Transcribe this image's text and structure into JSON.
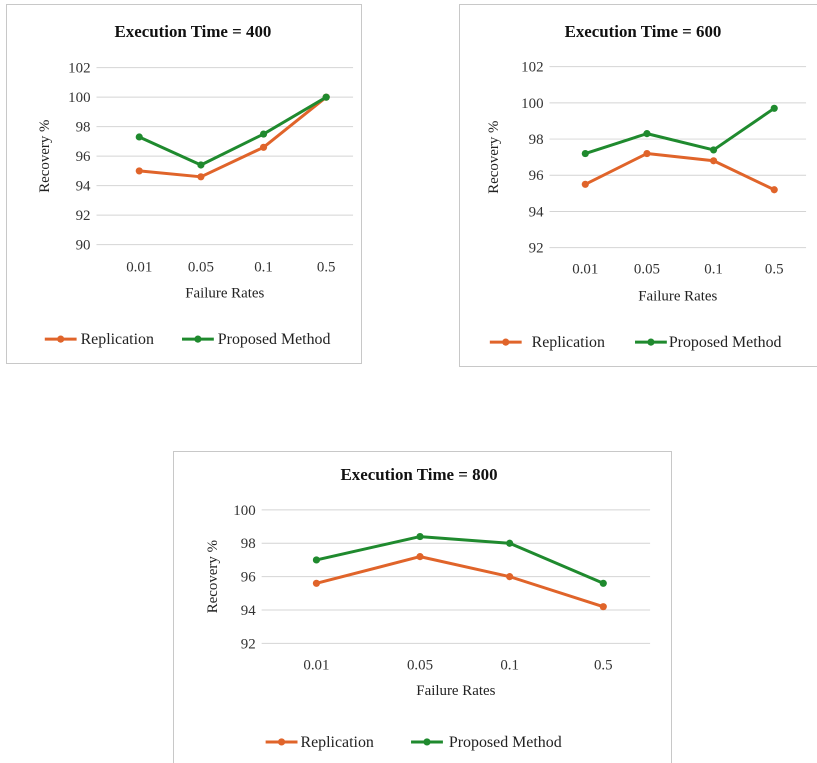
{
  "colors": {
    "replication": "#e0642a",
    "proposed": "#1f8a2e",
    "grid": "#d4d4d4"
  },
  "chart_data": [
    {
      "type": "line",
      "title": "Execution Time = 400",
      "xlabel": "Failure Rates",
      "ylabel": "Recovery %",
      "categories": [
        "0.01",
        "0.05",
        "0.1",
        "0.5"
      ],
      "ylim": [
        90,
        102
      ],
      "yticks": [
        "90",
        "92",
        "94",
        "96",
        "98",
        "100",
        "102"
      ],
      "legend_position": "bottom",
      "grid": true,
      "series": [
        {
          "name": "Replication",
          "values": [
            95.0,
            94.6,
            96.6,
            100.0
          ]
        },
        {
          "name": "Proposed Method",
          "values": [
            97.3,
            95.4,
            97.5,
            100.0
          ]
        }
      ]
    },
    {
      "type": "line",
      "title": "Execution Time = 600",
      "xlabel": "Failure Rates",
      "ylabel": "Recovery %",
      "categories": [
        "0.01",
        "0.05",
        "0.1",
        "0.5"
      ],
      "ylim": [
        92,
        102
      ],
      "yticks": [
        "92",
        "94",
        "96",
        "98",
        "100",
        "102"
      ],
      "legend_position": "bottom",
      "grid": true,
      "series": [
        {
          "name": "Replication",
          "values": [
            95.5,
            97.2,
            96.8,
            95.2
          ]
        },
        {
          "name": "Proposed Method",
          "values": [
            97.2,
            98.3,
            97.4,
            99.7
          ]
        }
      ]
    },
    {
      "type": "line",
      "title": "Execution Time = 800",
      "xlabel": "Failure Rates",
      "ylabel": "Recovery %",
      "categories": [
        "0.01",
        "0.05",
        "0.1",
        "0.5"
      ],
      "ylim": [
        92,
        100
      ],
      "yticks": [
        "92",
        "94",
        "96",
        "98",
        "100"
      ],
      "legend_position": "bottom",
      "grid": true,
      "series": [
        {
          "name": "Replication",
          "values": [
            95.6,
            97.2,
            96.0,
            94.2
          ]
        },
        {
          "name": "Proposed Method",
          "values": [
            97.0,
            98.4,
            98.0,
            95.6
          ]
        }
      ]
    }
  ]
}
